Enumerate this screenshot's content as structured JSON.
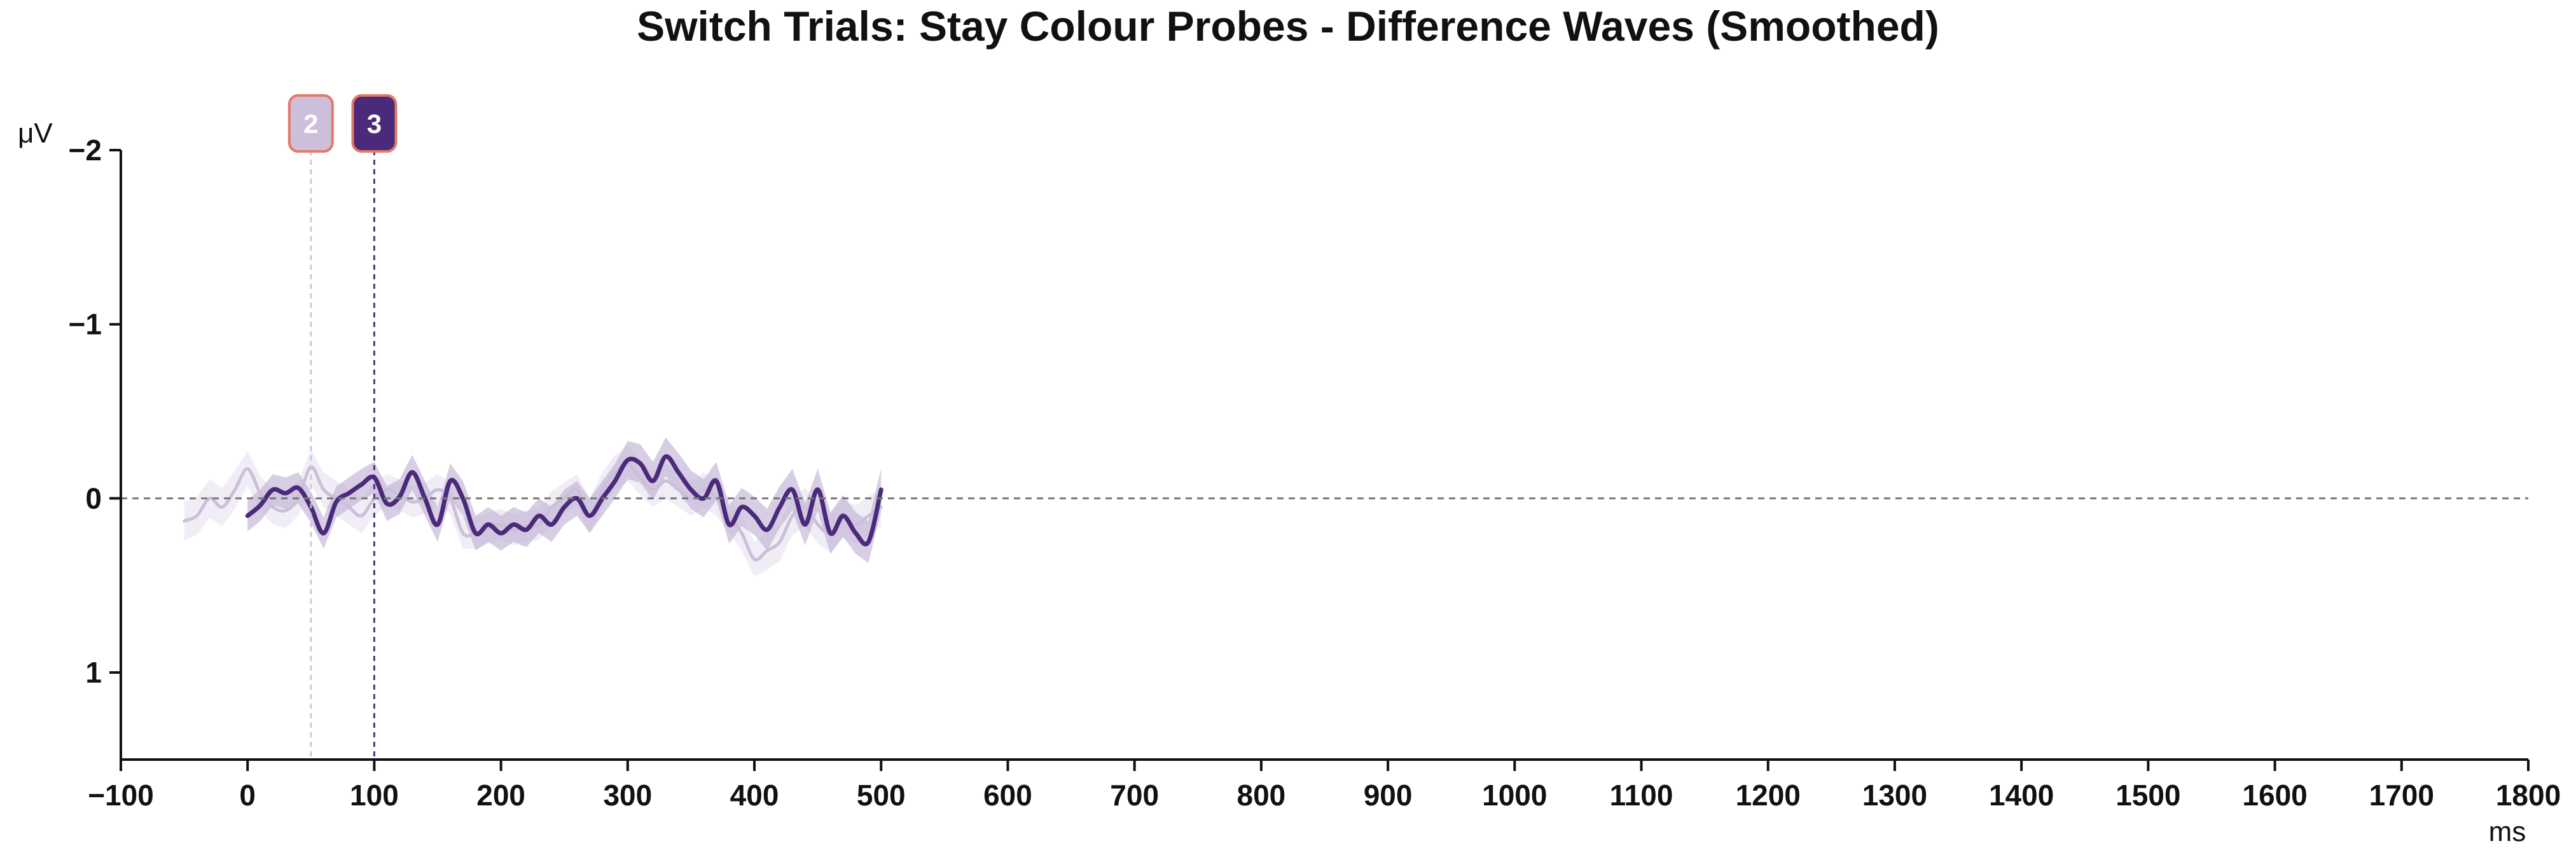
{
  "chart_data": {
    "type": "line",
    "title": "Switch Trials: Stay Colour Probes - Difference Waves (Smoothed)",
    "xlabel": "ms",
    "ylabel": "μV",
    "xlim": [
      -100,
      1800
    ],
    "ylim": [
      -2,
      1.5
    ],
    "y_inverted": true,
    "xticks": [
      -100,
      0,
      100,
      200,
      300,
      400,
      500,
      600,
      700,
      800,
      900,
      1000,
      1100,
      1200,
      1300,
      1400,
      1500,
      1600,
      1700,
      1800
    ],
    "xtick_labels": [
      "−100",
      "0",
      "100",
      "200",
      "300",
      "400",
      "500",
      "600",
      "700",
      "800",
      "900",
      "1000",
      "1100",
      "1200",
      "1300",
      "1400",
      "1500",
      "1600",
      "1700",
      "1800"
    ],
    "yticks": [
      -2,
      -1,
      0,
      1
    ],
    "ytick_labels": [
      "−2",
      "−1",
      "0",
      "1"
    ],
    "grid": false,
    "zero_line": true,
    "colors": {
      "series_2": "#cbbfd9",
      "series_3": "#4b2a7b",
      "band_2": "#ece7f3",
      "band_3": "#bfb0d3",
      "marker_border": "#e17a68",
      "zero_line": "#777777"
    },
    "markers": [
      {
        "label": "2",
        "x": 50,
        "color": "#cdbfd9"
      },
      {
        "label": "3",
        "x": 100,
        "color": "#4b2a7b"
      }
    ],
    "series": [
      {
        "label": "2",
        "x": [
          -50,
          -40,
          -30,
          -20,
          -10,
          0,
          10,
          20,
          30,
          40,
          50,
          60,
          70,
          80,
          90,
          100,
          110,
          120,
          130,
          140,
          150,
          160,
          170,
          180,
          190,
          200,
          210,
          220,
          230,
          240,
          250,
          260,
          270,
          280,
          290,
          300,
          310,
          320,
          330,
          340,
          350,
          360,
          370,
          380,
          390,
          400,
          410,
          420,
          430,
          440,
          450,
          460,
          470,
          480,
          490,
          500
        ],
        "values": [
          0.13,
          0.1,
          0.0,
          0.05,
          -0.05,
          -0.17,
          -0.03,
          0.05,
          0.07,
          0.0,
          -0.18,
          -0.05,
          0.0,
          0.05,
          0.1,
          0.0,
          -0.05,
          -0.02,
          0.02,
          0.0,
          -0.05,
          0.0,
          0.2,
          0.2,
          0.17,
          0.15,
          0.18,
          0.16,
          0.15,
          0.05,
          0.0,
          -0.05,
          0.1,
          -0.05,
          -0.15,
          -0.2,
          -0.12,
          -0.05,
          -0.1,
          -0.05,
          0.0,
          -0.05,
          0.0,
          0.1,
          0.2,
          0.35,
          0.3,
          0.25,
          0.1,
          0.05,
          0.15,
          0.2,
          0.12,
          0.15,
          0.1,
          0.05
        ],
        "ci": [
          0.11,
          0.11,
          0.11,
          0.11,
          0.11,
          0.1,
          0.1,
          0.1,
          0.1,
          0.1,
          0.1,
          0.1,
          0.1,
          0.1,
          0.1,
          0.1,
          0.09,
          0.09,
          0.09,
          0.09,
          0.09,
          0.09,
          0.09,
          0.09,
          0.09,
          0.09,
          0.09,
          0.09,
          0.09,
          0.09,
          0.09,
          0.09,
          0.1,
          0.1,
          0.1,
          0.1,
          0.1,
          0.1,
          0.1,
          0.1,
          0.1,
          0.1,
          0.1,
          0.1,
          0.1,
          0.1,
          0.11,
          0.11,
          0.11,
          0.11,
          0.11,
          0.11,
          0.11,
          0.11,
          0.11,
          0.11
        ]
      },
      {
        "label": "3",
        "x": [
          0,
          10,
          20,
          30,
          40,
          50,
          60,
          70,
          80,
          90,
          100,
          110,
          120,
          130,
          140,
          150,
          160,
          170,
          180,
          190,
          200,
          210,
          220,
          230,
          240,
          250,
          260,
          270,
          280,
          290,
          300,
          310,
          320,
          330,
          340,
          350,
          360,
          370,
          380,
          390,
          400,
          410,
          420,
          430,
          440,
          450,
          460,
          470,
          480,
          490,
          500
        ],
        "values": [
          0.1,
          0.04,
          -0.05,
          -0.03,
          -0.06,
          0.05,
          0.2,
          0.02,
          -0.03,
          -0.08,
          -0.12,
          0.03,
          -0.01,
          -0.15,
          0.0,
          0.15,
          -0.1,
          0.0,
          0.2,
          0.15,
          0.2,
          0.15,
          0.18,
          0.1,
          0.15,
          0.05,
          0.0,
          0.1,
          0.0,
          -0.1,
          -0.22,
          -0.2,
          -0.1,
          -0.24,
          -0.15,
          -0.05,
          0.0,
          -0.1,
          0.15,
          0.05,
          0.1,
          0.18,
          0.05,
          -0.05,
          0.15,
          -0.05,
          0.2,
          0.1,
          0.2,
          0.25,
          -0.05
        ],
        "ci": [
          0.09,
          0.09,
          0.09,
          0.09,
          0.09,
          0.09,
          0.09,
          0.09,
          0.09,
          0.09,
          0.09,
          0.1,
          0.1,
          0.1,
          0.1,
          0.1,
          0.1,
          0.1,
          0.1,
          0.1,
          0.1,
          0.1,
          0.1,
          0.1,
          0.1,
          0.1,
          0.1,
          0.1,
          0.1,
          0.1,
          0.11,
          0.11,
          0.11,
          0.11,
          0.11,
          0.11,
          0.11,
          0.11,
          0.11,
          0.11,
          0.11,
          0.12,
          0.12,
          0.12,
          0.12,
          0.12,
          0.12,
          0.12,
          0.12,
          0.12,
          0.12
        ]
      }
    ]
  }
}
